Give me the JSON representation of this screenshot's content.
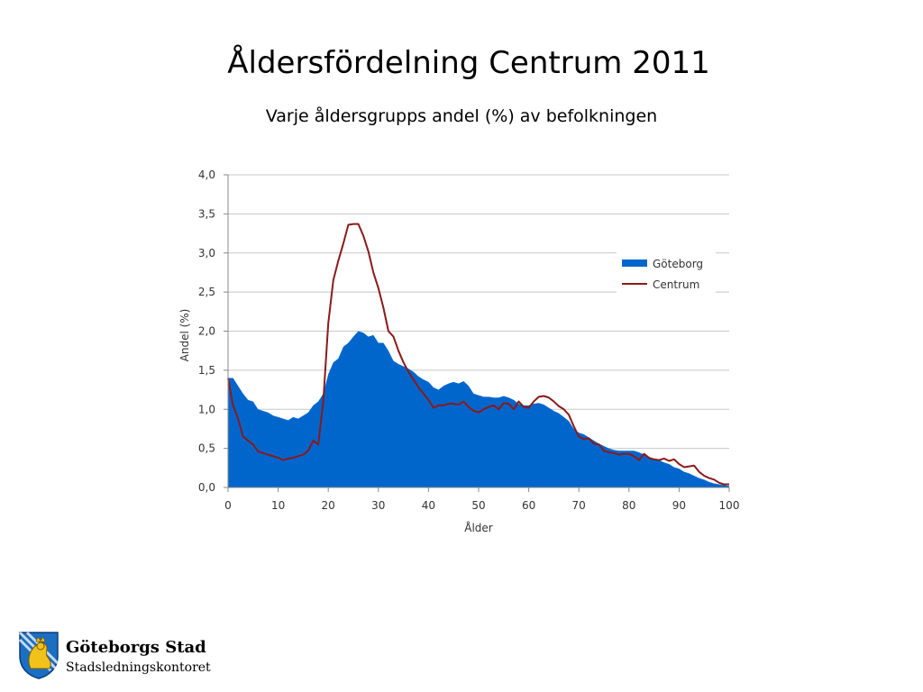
{
  "slide": {
    "title": "Åldersfördelning Centrum 2011",
    "subtitle": "Varje åldersgrupps andel (%) av befolkningen"
  },
  "footer": {
    "org": "Göteborgs Stad",
    "dept": "Stadsledningskontoret",
    "logo_icon": "goteborg-lion-crest-icon"
  },
  "colors": {
    "goteborg": "#0066cc",
    "centrum": "#8b1a1a",
    "grid": "#c8c8c8",
    "axis": "#888888"
  },
  "chart_data": {
    "type": "area",
    "title": "",
    "xlabel": "Ålder",
    "ylabel": "Andel (%)",
    "xlim": [
      0,
      100
    ],
    "ylim": [
      0,
      4.0
    ],
    "xticks": [
      "0",
      "10",
      "20",
      "30",
      "40",
      "50",
      "60",
      "70",
      "80",
      "90",
      "100"
    ],
    "yticks": [
      "0,0",
      "0,5",
      "1,0",
      "1,5",
      "2,0",
      "2,5",
      "3,0",
      "3,5",
      "4,0"
    ],
    "grid": true,
    "legend_position": "right",
    "series": [
      {
        "name": "Göteborg",
        "style": "area",
        "x": [
          0,
          1,
          2,
          3,
          4,
          5,
          6,
          7,
          8,
          9,
          10,
          11,
          12,
          13,
          14,
          15,
          16,
          17,
          18,
          19,
          20,
          21,
          22,
          23,
          24,
          25,
          26,
          27,
          28,
          29,
          30,
          31,
          32,
          33,
          34,
          35,
          36,
          37,
          38,
          39,
          40,
          41,
          42,
          43,
          44,
          45,
          46,
          47,
          48,
          49,
          50,
          51,
          52,
          53,
          54,
          55,
          56,
          57,
          58,
          59,
          60,
          61,
          62,
          63,
          64,
          65,
          66,
          67,
          68,
          69,
          70,
          71,
          72,
          73,
          74,
          75,
          76,
          77,
          78,
          79,
          80,
          81,
          82,
          83,
          84,
          85,
          86,
          87,
          88,
          89,
          90,
          91,
          92,
          93,
          94,
          95,
          96,
          97,
          98,
          99,
          100
        ],
        "values": [
          1.4,
          1.4,
          1.3,
          1.2,
          1.12,
          1.1,
          1.0,
          0.98,
          0.96,
          0.92,
          0.9,
          0.88,
          0.86,
          0.9,
          0.88,
          0.92,
          0.96,
          1.05,
          1.1,
          1.2,
          1.45,
          1.6,
          1.65,
          1.8,
          1.85,
          1.93,
          2.0,
          1.98,
          1.93,
          1.95,
          1.85,
          1.85,
          1.75,
          1.62,
          1.58,
          1.55,
          1.52,
          1.48,
          1.42,
          1.38,
          1.35,
          1.28,
          1.25,
          1.3,
          1.33,
          1.35,
          1.33,
          1.36,
          1.3,
          1.2,
          1.18,
          1.16,
          1.16,
          1.15,
          1.15,
          1.17,
          1.15,
          1.12,
          1.07,
          1.05,
          1.05,
          1.07,
          1.08,
          1.06,
          1.02,
          0.98,
          0.95,
          0.9,
          0.85,
          0.75,
          0.7,
          0.68,
          0.64,
          0.6,
          0.56,
          0.53,
          0.5,
          0.48,
          0.47,
          0.47,
          0.47,
          0.47,
          0.45,
          0.42,
          0.38,
          0.36,
          0.35,
          0.32,
          0.3,
          0.26,
          0.24,
          0.2,
          0.18,
          0.15,
          0.12,
          0.1,
          0.07,
          0.05,
          0.04,
          0.03,
          0.02
        ]
      },
      {
        "name": "Centrum",
        "style": "line",
        "x": [
          0,
          1,
          2,
          3,
          4,
          5,
          6,
          7,
          8,
          9,
          10,
          11,
          12,
          13,
          14,
          15,
          16,
          17,
          18,
          19,
          20,
          21,
          22,
          23,
          24,
          25,
          26,
          27,
          28,
          29,
          30,
          31,
          32,
          33,
          34,
          35,
          36,
          37,
          38,
          39,
          40,
          41,
          42,
          43,
          44,
          45,
          46,
          47,
          48,
          49,
          50,
          51,
          52,
          53,
          54,
          55,
          56,
          57,
          58,
          59,
          60,
          61,
          62,
          63,
          64,
          65,
          66,
          67,
          68,
          69,
          70,
          71,
          72,
          73,
          74,
          75,
          76,
          77,
          78,
          79,
          80,
          81,
          82,
          83,
          84,
          85,
          86,
          87,
          88,
          89,
          90,
          91,
          92,
          93,
          94,
          95,
          96,
          97,
          98,
          99,
          100
        ],
        "values": [
          1.4,
          1.05,
          0.88,
          0.65,
          0.6,
          0.55,
          0.46,
          0.44,
          0.42,
          0.4,
          0.38,
          0.35,
          0.37,
          0.38,
          0.4,
          0.42,
          0.47,
          0.6,
          0.55,
          1.1,
          2.1,
          2.65,
          2.9,
          3.12,
          3.36,
          3.37,
          3.37,
          3.22,
          3.02,
          2.75,
          2.55,
          2.3,
          2.0,
          1.93,
          1.75,
          1.6,
          1.48,
          1.38,
          1.28,
          1.2,
          1.12,
          1.02,
          1.05,
          1.05,
          1.07,
          1.07,
          1.06,
          1.1,
          1.03,
          0.98,
          0.96,
          1.0,
          1.03,
          1.05,
          1.0,
          1.08,
          1.07,
          1.0,
          1.1,
          1.03,
          1.02,
          1.1,
          1.16,
          1.17,
          1.15,
          1.1,
          1.04,
          1.0,
          0.93,
          0.78,
          0.65,
          0.62,
          0.63,
          0.56,
          0.55,
          0.47,
          0.45,
          0.44,
          0.42,
          0.43,
          0.43,
          0.4,
          0.35,
          0.43,
          0.38,
          0.36,
          0.35,
          0.37,
          0.34,
          0.36,
          0.3,
          0.26,
          0.27,
          0.28,
          0.2,
          0.15,
          0.12,
          0.1,
          0.06,
          0.04,
          0.04
        ]
      }
    ]
  }
}
